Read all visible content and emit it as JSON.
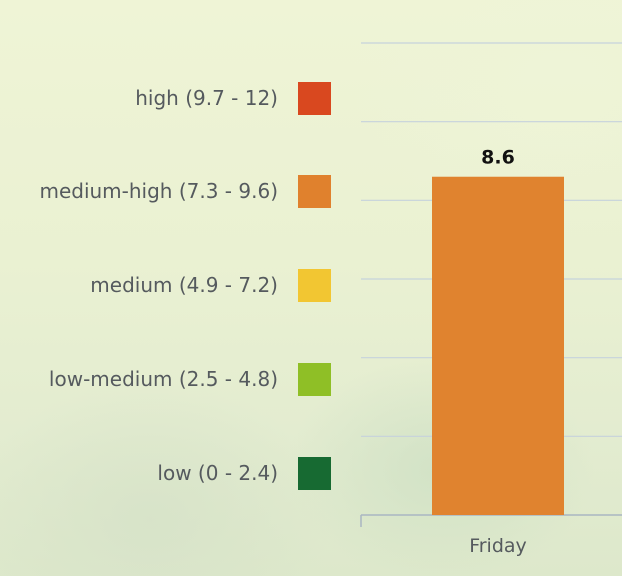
{
  "legend": {
    "items": [
      {
        "label": "high (9.7 - 12)",
        "color": "#d9481f"
      },
      {
        "label": "medium-high (7.3 - 9.6)",
        "color": "#e0812d"
      },
      {
        "label": "medium (4.9 - 7.2)",
        "color": "#f2c632"
      },
      {
        "label": "low-medium (2.5 - 4.8)",
        "color": "#8fbf26"
      },
      {
        "label": "low (0 - 2.4)",
        "color": "#176a32"
      }
    ]
  },
  "chart_data": {
    "type": "bar",
    "categories": [
      "Friday"
    ],
    "values": [
      8.6
    ],
    "data_labels": [
      "8.6"
    ],
    "bar_colors": [
      "#e0832f"
    ],
    "ylim": [
      0,
      12
    ],
    "y_gridlines": [
      2,
      4,
      6,
      8,
      10,
      12
    ],
    "grid": true,
    "legend_position": "left",
    "title": "",
    "xlabel": "",
    "ylabel": ""
  }
}
